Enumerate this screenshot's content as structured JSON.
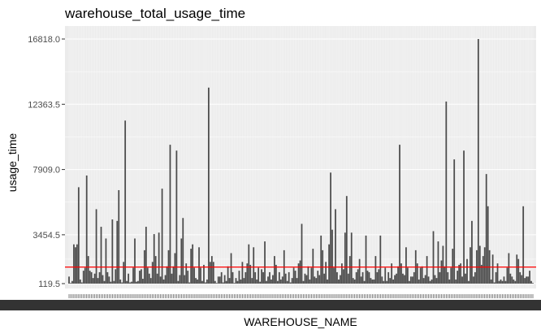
{
  "chart_data": {
    "type": "bar",
    "title": "warehouse_total_usage_time",
    "xlabel": "WAREHOUSE_NAME",
    "ylabel": "usage_time",
    "y_ticks": [
      {
        "value": 119.5,
        "label": "119.5"
      },
      {
        "value": 3454.5,
        "label": "3454.5"
      },
      {
        "value": 7909.0,
        "label": "7909.0"
      },
      {
        "value": 12363.5,
        "label": "12363.5"
      },
      {
        "value": 16818.0,
        "label": "16818.0"
      }
    ],
    "ylim": [
      119.5,
      17500
    ],
    "x_tick_labels_legible": false,
    "reference_line": {
      "value": 1250,
      "color": "#ff0000"
    },
    "colors": {
      "bar": "#4d4d4d",
      "panel": "#ebebeb",
      "grid": "#ffffff",
      "reference": "#ff0000",
      "x_label_block": "#333333"
    },
    "grid": true,
    "values": [
      600,
      150,
      300,
      2800,
      2600,
      2800,
      6700,
      400,
      200,
      1000,
      1200,
      7500,
      2000,
      1000,
      900,
      500,
      800,
      5200,
      500,
      900,
      4000,
      700,
      300,
      3200,
      900,
      600,
      250,
      4500,
      300,
      1100,
      4400,
      6500,
      400,
      200,
      1600,
      11250,
      300,
      800,
      200,
      250,
      1200,
      3200,
      250,
      300,
      1000,
      1100,
      450,
      2400,
      4000,
      1200,
      800,
      500,
      1600,
      3500,
      2000,
      800,
      3600,
      600,
      6600,
      400,
      700,
      1300,
      2400,
      9600,
      800,
      1300,
      2200,
      9200,
      300,
      700,
      3200,
      4600,
      700,
      1500,
      1000,
      200,
      2500,
      2800,
      1200,
      500,
      400,
      2600,
      1200,
      300,
      1400,
      200,
      400,
      13500,
      1600,
      2000,
      1600,
      300,
      100,
      600,
      600,
      900,
      200,
      700,
      300,
      1300,
      500,
      2200,
      900,
      100,
      500,
      300,
      1000,
      400,
      1600,
      500,
      900,
      1500,
      2800,
      1400,
      500,
      2600,
      900,
      400,
      1200,
      250,
      1100,
      900,
      3000,
      300,
      600,
      900,
      400,
      700,
      2000,
      1400,
      300,
      900,
      400,
      600,
      2400,
      800,
      300,
      900,
      200,
      500,
      1200,
      1000,
      500,
      1500,
      1700,
      4200,
      300,
      800,
      700,
      1300,
      400,
      1200,
      2500,
      600,
      500,
      1000,
      700,
      3400,
      2400,
      800,
      1600,
      400,
      2800,
      7700,
      3800,
      1200,
      5200,
      900,
      400,
      700,
      1500,
      1100,
      3600,
      6100,
      800,
      2000,
      3600,
      500,
      400,
      900,
      1100,
      1800,
      600,
      900,
      300,
      3400,
      1000,
      900,
      500,
      400,
      400,
      2000,
      900,
      1100,
      3400,
      600,
      300,
      1200,
      300,
      900,
      500,
      1500,
      400,
      700,
      800,
      1300,
      9600,
      1500,
      800,
      700,
      2600,
      1200,
      300,
      600,
      600,
      900,
      2400,
      1500,
      400,
      1200,
      1300,
      500,
      700,
      2000,
      600,
      300,
      400,
      3700,
      700,
      500,
      3000,
      900,
      1700,
      2700,
      1300,
      12550,
      900,
      400,
      1200,
      2500,
      8600,
      400,
      1000,
      1400,
      1500,
      600,
      9200,
      800,
      1800,
      300,
      2600,
      4400,
      600,
      900,
      2400,
      16818,
      2700,
      1400,
      2000,
      2600,
      7600,
      5400,
      2400,
      400,
      2100,
      200,
      900,
      1500,
      300,
      400,
      300,
      600,
      300,
      1200,
      2200,
      800,
      600,
      400,
      300,
      2100,
      1800,
      900,
      700,
      5400,
      500,
      600,
      600,
      1000,
      300,
      100
    ]
  }
}
